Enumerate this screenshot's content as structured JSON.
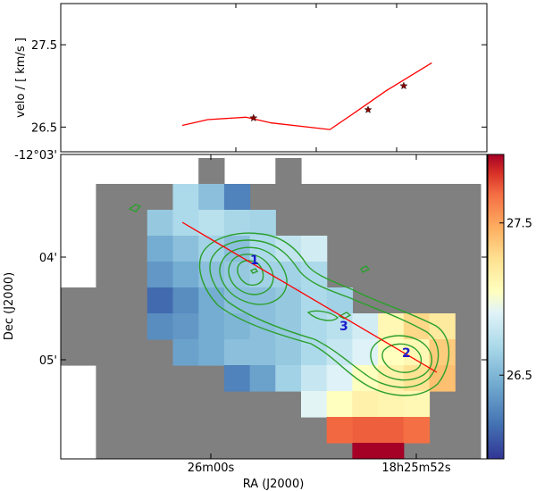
{
  "chart_data": [
    {
      "type": "line",
      "ylabel": "velo / [ km/s ]",
      "ylim": [
        26.2,
        28.0
      ],
      "yticks": [
        "27.5",
        "26.5"
      ],
      "series": [
        {
          "color": "#ff0000",
          "points": [
            [
              0.0,
              26.52
            ],
            [
              0.1,
              26.59
            ],
            [
              0.25,
              26.62
            ],
            [
              0.35,
              26.55
            ],
            [
              0.58,
              26.47
            ],
            [
              0.68,
              26.68
            ],
            [
              0.8,
              26.94
            ],
            [
              0.98,
              27.28
            ]
          ]
        }
      ],
      "star_markers": [
        [
          0.28,
          26.61
        ],
        [
          0.73,
          26.71
        ],
        [
          0.87,
          27.0
        ]
      ],
      "star_color": "#8b0000"
    },
    {
      "type": "heatmap",
      "xlabel": "RA (J2000)",
      "ylabel": "Dec (J2000)",
      "xticks": [
        "26m00s",
        "18h25m52s"
      ],
      "yticks": [
        "-12°03'",
        "04'",
        "05'"
      ],
      "colorbar": {
        "min": 25.95,
        "max": 27.95,
        "ticks": [
          "27.5",
          "26.5"
        ]
      },
      "nodata_color": "#808080",
      "grid_cols": 17,
      "grid_rows": 12,
      "mask_rows": [
        "......X..X.......",
        "..XXXXXXXXXXXXXXX",
        "..XXXXXXXXXXXXXXX",
        "..XXXXXXXXXXXXXXX",
        "..XXXXXXXXXXXXXXX",
        "XXXXXXXXXXXXXXXXX",
        "XXXXXXXXXXXXXXXXX",
        "XXXXXXXXXXXXXXXXX",
        "..XXXXXXXXXXXXXXX",
        "..XXXXXXXXXXXXXXX",
        "..XXXXXXXXXXXXXXX",
        "..XXXXXXXXXXXXXXX"
      ],
      "cells": [
        [
          1,
          5,
          26.7
        ],
        [
          1,
          6,
          26.55
        ],
        [
          1,
          7,
          26.25
        ],
        [
          2,
          4,
          26.6
        ],
        [
          2,
          5,
          26.7
        ],
        [
          2,
          6,
          26.75
        ],
        [
          2,
          7,
          26.68
        ],
        [
          2,
          8,
          26.66
        ],
        [
          3,
          4,
          26.45
        ],
        [
          3,
          5,
          26.55
        ],
        [
          3,
          6,
          26.65
        ],
        [
          3,
          7,
          26.55
        ],
        [
          3,
          8,
          26.7
        ],
        [
          3,
          9,
          26.78
        ],
        [
          3,
          10,
          26.85
        ],
        [
          4,
          4,
          26.35
        ],
        [
          4,
          5,
          26.45
        ],
        [
          4,
          6,
          26.55
        ],
        [
          4,
          7,
          26.6
        ],
        [
          4,
          8,
          26.65
        ],
        [
          4,
          9,
          26.65
        ],
        [
          4,
          10,
          26.7
        ],
        [
          5,
          4,
          26.15
        ],
        [
          5,
          5,
          26.3
        ],
        [
          5,
          6,
          26.45
        ],
        [
          5,
          7,
          26.55
        ],
        [
          5,
          8,
          26.55
        ],
        [
          5,
          9,
          26.6
        ],
        [
          5,
          10,
          26.7
        ],
        [
          5,
          11,
          26.65
        ],
        [
          6,
          4,
          26.3
        ],
        [
          6,
          5,
          26.35
        ],
        [
          6,
          6,
          26.45
        ],
        [
          6,
          7,
          26.5
        ],
        [
          6,
          8,
          26.55
        ],
        [
          6,
          9,
          26.6
        ],
        [
          6,
          10,
          26.7
        ],
        [
          6,
          11,
          26.75
        ],
        [
          6,
          12,
          26.85
        ],
        [
          6,
          13,
          27.1
        ],
        [
          6,
          14,
          27.3
        ],
        [
          6,
          15,
          27.2
        ],
        [
          7,
          5,
          26.4
        ],
        [
          7,
          6,
          26.45
        ],
        [
          7,
          7,
          26.55
        ],
        [
          7,
          8,
          26.55
        ],
        [
          7,
          9,
          26.6
        ],
        [
          7,
          10,
          26.7
        ],
        [
          7,
          11,
          26.8
        ],
        [
          7,
          12,
          26.9
        ],
        [
          7,
          13,
          27.05
        ],
        [
          7,
          14,
          27.1
        ],
        [
          7,
          15,
          27.35
        ],
        [
          8,
          7,
          26.25
        ],
        [
          8,
          8,
          26.4
        ],
        [
          8,
          9,
          26.65
        ],
        [
          8,
          10,
          26.8
        ],
        [
          8,
          11,
          26.9
        ],
        [
          8,
          12,
          27.05
        ],
        [
          8,
          13,
          27.15
        ],
        [
          8,
          14,
          27.25
        ],
        [
          8,
          15,
          27.4
        ],
        [
          9,
          10,
          26.92
        ],
        [
          9,
          11,
          27.05
        ],
        [
          9,
          12,
          27.15
        ],
        [
          9,
          13,
          27.12
        ],
        [
          9,
          14,
          27.1
        ],
        [
          10,
          11,
          27.7
        ],
        [
          10,
          12,
          27.72
        ],
        [
          10,
          13,
          27.72
        ],
        [
          10,
          14,
          27.68
        ],
        [
          11,
          12,
          27.95
        ],
        [
          11,
          13,
          27.95
        ]
      ],
      "cut_line_color": "#ff0000",
      "contour_color": "#2ca02c",
      "markers": [
        "1",
        "2",
        "3"
      ]
    }
  ]
}
